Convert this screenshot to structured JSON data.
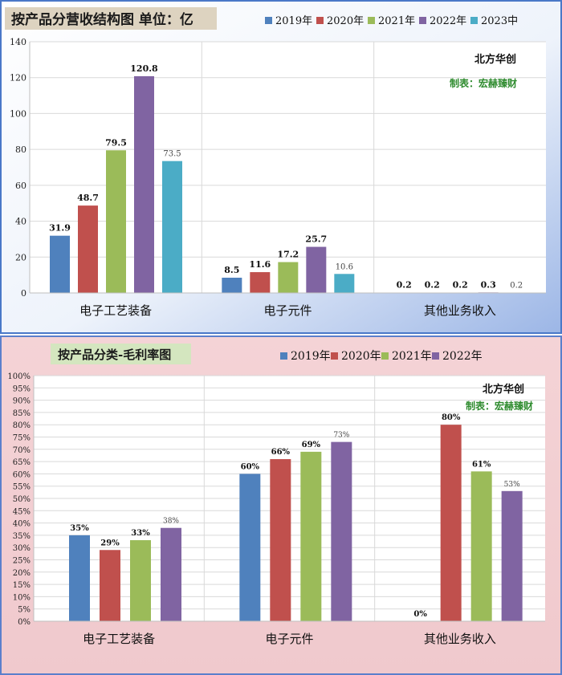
{
  "chart_data": [
    {
      "type": "bar",
      "title": "按产品分营收结构图 单位：亿",
      "source": "北方华创",
      "maker": "制表：宏赫臻财",
      "categories": [
        "电子工艺装备",
        "电子元件",
        "其他业务收入"
      ],
      "ylim": [
        0,
        140
      ],
      "yticks": [
        "0",
        "20",
        "40",
        "60",
        "80",
        "100",
        "120",
        "140"
      ],
      "legend_position": "top",
      "series": [
        {
          "name": "2019年",
          "color": "#4f81bd",
          "values": [
            31.9,
            8.5,
            0.2
          ],
          "labels": [
            "31.9",
            "8.5",
            "0.2"
          ]
        },
        {
          "name": "2020年",
          "color": "#c0504d",
          "values": [
            48.7,
            11.6,
            0.2
          ],
          "labels": [
            "48.7",
            "11.6",
            "0.2"
          ]
        },
        {
          "name": "2021年",
          "color": "#9bbb59",
          "values": [
            79.5,
            17.2,
            0.2
          ],
          "labels": [
            "79.5",
            "17.2",
            "0.2"
          ]
        },
        {
          "name": "2022年",
          "color": "#8064a2",
          "values": [
            120.8,
            25.7,
            0.3
          ],
          "labels": [
            "120.8",
            "25.7",
            "0.3"
          ]
        },
        {
          "name": "2023中",
          "color": "#4bacc6",
          "values": [
            73.5,
            10.6,
            0.2
          ],
          "labels": [
            "73.5",
            "10.6",
            "0.2"
          ]
        }
      ]
    },
    {
      "type": "bar",
      "title": "按产品分类-毛利率图",
      "source": "北方华创",
      "maker": "制表：宏赫臻财",
      "categories": [
        "电子工艺装备",
        "电子元件",
        "其他业务收入"
      ],
      "ylim": [
        0,
        100
      ],
      "yticks": [
        "0%",
        "5%",
        "10%",
        "15%",
        "20%",
        "25%",
        "30%",
        "35%",
        "40%",
        "45%",
        "50%",
        "55%",
        "60%",
        "65%",
        "70%",
        "75%",
        "80%",
        "85%",
        "90%",
        "95%",
        "100%"
      ],
      "legend_position": "top",
      "series": [
        {
          "name": "2019年",
          "color": "#4f81bd",
          "values": [
            35,
            60,
            0
          ],
          "labels": [
            "35%",
            "60%",
            "0%"
          ]
        },
        {
          "name": "2020年",
          "color": "#c0504d",
          "values": [
            29,
            66,
            80
          ],
          "labels": [
            "29%",
            "66%",
            "80%"
          ]
        },
        {
          "name": "2021年",
          "color": "#9bbb59",
          "values": [
            33,
            69,
            61
          ],
          "labels": [
            "33%",
            "69%",
            "61%"
          ]
        },
        {
          "name": "2022年",
          "color": "#8064a2",
          "values": [
            38,
            73,
            53
          ],
          "labels": [
            "38%",
            "73%",
            "53%"
          ]
        }
      ]
    }
  ]
}
